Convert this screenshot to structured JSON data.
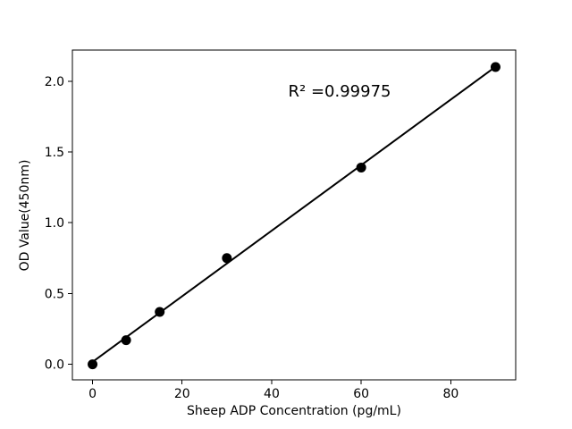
{
  "figure": {
    "background": "#ffffff"
  },
  "chart_data": {
    "type": "scatter",
    "title": "",
    "xlabel": "Sheep ADP Concentration (pg/mL)",
    "ylabel": "OD Value(450nm)",
    "annotation": "R² =0.99975",
    "x": [
      0,
      7.5,
      15,
      30,
      60,
      90
    ],
    "y": [
      0.0,
      0.17,
      0.37,
      0.75,
      1.39,
      2.1
    ],
    "fit_line": {
      "x": [
        0,
        90
      ],
      "y": [
        0.017,
        2.102
      ]
    },
    "xlim": [
      -4.5,
      94.5
    ],
    "ylim": [
      -0.11,
      2.22
    ],
    "xticks": {
      "values": [
        0,
        20,
        40,
        60,
        80
      ],
      "labels": [
        "0",
        "20",
        "40",
        "60",
        "80"
      ]
    },
    "yticks": {
      "values": [
        0,
        0.5,
        1.0,
        1.5,
        2.0
      ],
      "labels": [
        "0.0",
        "0.5",
        "1.0",
        "1.5",
        "2.0"
      ]
    },
    "grid": false,
    "legend": null,
    "marker": {
      "shape": "circle",
      "radius_px": 5.5
    },
    "colors": {
      "marker": "#000000",
      "line": "#000000",
      "spine": "#000000",
      "text": "#000000",
      "background": "#ffffff"
    }
  }
}
